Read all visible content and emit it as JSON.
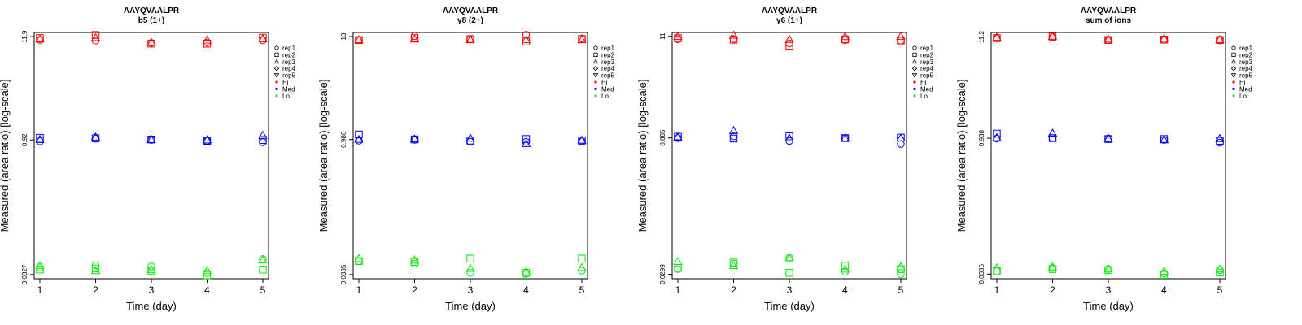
{
  "chart_data": [
    {
      "type": "scatter",
      "title": "AAYQVAALPR",
      "subtitle": "b5 (1+)",
      "xlabel": "Time (day)",
      "ylabel": "Measured (area ratio) [log-scale]",
      "x_ticks": [
        "1",
        "2",
        "3",
        "4",
        "5"
      ],
      "y_scale": "log",
      "y_ticks": [
        "0.0327",
        "0.92",
        "11.9"
      ],
      "ylim": [
        0.0295,
        13.2
      ],
      "legend_placement": "right",
      "legend": {
        "markers": [
          "rep1",
          "rep2",
          "rep3",
          "rep4",
          "rep5"
        ],
        "groups": [
          {
            "label": "Hi",
            "color": "#ff0000"
          },
          {
            "label": "Med",
            "color": "#0000ff"
          },
          {
            "label": "Lo",
            "color": "#00ee00"
          }
        ]
      },
      "series": [
        {
          "group": "Hi",
          "marker": "rep1",
          "values": [
            11.0,
            10.8,
            10.2,
            10.3,
            10.9
          ]
        },
        {
          "group": "Hi",
          "marker": "rep2",
          "values": [
            11.5,
            12.4,
            10.0,
            10.0,
            11.6
          ]
        },
        {
          "group": "Hi",
          "marker": "rep3",
          "values": [
            11.2,
            11.6,
            10.3,
            10.9,
            11.3
          ]
        },
        {
          "group": "Med",
          "marker": "rep1",
          "values": [
            0.89,
            0.95,
            0.92,
            0.9,
            0.87
          ]
        },
        {
          "group": "Med",
          "marker": "rep2",
          "values": [
            0.97,
            0.96,
            0.93,
            0.9,
            0.92
          ]
        },
        {
          "group": "Med",
          "marker": "rep3",
          "values": [
            0.93,
            0.99,
            0.93,
            0.92,
            1.03
          ]
        },
        {
          "group": "Lo",
          "marker": "rep1",
          "values": [
            0.039,
            0.041,
            0.04,
            0.034,
            0.048
          ]
        },
        {
          "group": "Lo",
          "marker": "rep2",
          "values": [
            0.037,
            0.038,
            0.036,
            0.032,
            0.037
          ]
        },
        {
          "group": "Lo",
          "marker": "rep3",
          "values": [
            0.041,
            0.036,
            0.037,
            0.036,
            0.047
          ]
        }
      ]
    },
    {
      "type": "scatter",
      "title": "AAYQVAALPR",
      "subtitle": "y8 (2+)",
      "xlabel": "Time (day)",
      "ylabel": "Measured (area ratio) [log-scale]",
      "x_ticks": [
        "1",
        "2",
        "3",
        "4",
        "5"
      ],
      "y_scale": "log",
      "y_ticks": [
        "0.0335",
        "0.986",
        "13"
      ],
      "ylim": [
        0.0302,
        14.4
      ],
      "legend_placement": "right",
      "legend": {
        "markers": [
          "rep1",
          "rep2",
          "rep3",
          "rep4",
          "rep5"
        ],
        "groups": [
          {
            "label": "Hi",
            "color": "#ff0000"
          },
          {
            "label": "Med",
            "color": "#0000ff"
          },
          {
            "label": "Lo",
            "color": "#00ee00"
          }
        ]
      },
      "series": [
        {
          "group": "Hi",
          "marker": "rep1",
          "values": [
            11.9,
            13.2,
            12.1,
            13.6,
            12.4
          ]
        },
        {
          "group": "Hi",
          "marker": "rep2",
          "values": [
            11.9,
            12.5,
            12.2,
            11.5,
            12.2
          ]
        },
        {
          "group": "Hi",
          "marker": "rep3",
          "values": [
            12.0,
            12.2,
            12.0,
            12.0,
            12.0
          ]
        },
        {
          "group": "Med",
          "marker": "rep1",
          "values": [
            0.96,
            0.98,
            0.93,
            0.93,
            0.94
          ]
        },
        {
          "group": "Med",
          "marker": "rep2",
          "values": [
            1.12,
            0.99,
            0.96,
            1.0,
            0.96
          ]
        },
        {
          "group": "Med",
          "marker": "rep3",
          "values": [
            0.99,
            1.0,
            1.02,
            0.89,
            0.97
          ]
        },
        {
          "group": "Lo",
          "marker": "rep1",
          "values": [
            0.047,
            0.044,
            0.035,
            0.034,
            0.037
          ]
        },
        {
          "group": "Lo",
          "marker": "rep2",
          "values": [
            0.047,
            0.046,
            0.05,
            0.035,
            0.05
          ]
        },
        {
          "group": "Lo",
          "marker": "rep3",
          "values": [
            0.05,
            0.048,
            0.039,
            0.036,
            0.04
          ]
        }
      ]
    },
    {
      "type": "scatter",
      "title": "AAYQVAALPR",
      "subtitle": "y6 (1+)",
      "xlabel": "Time (day)",
      "ylabel": "Measured (area ratio) [log-scale]",
      "x_ticks": [
        "1",
        "2",
        "3",
        "4",
        "5"
      ],
      "y_scale": "log",
      "y_ticks": [
        "0.0299",
        "0.885",
        "11"
      ],
      "ylim": [
        0.0268,
        12.1
      ],
      "legend_placement": "right",
      "legend": {
        "markers": [
          "rep1",
          "rep2",
          "rep3",
          "rep4",
          "rep5"
        ],
        "groups": [
          {
            "label": "Hi",
            "color": "#ff0000"
          },
          {
            "label": "Med",
            "color": "#0000ff"
          },
          {
            "label": "Lo",
            "color": "#00ee00"
          }
        ]
      },
      "series": [
        {
          "group": "Hi",
          "marker": "rep1",
          "values": [
            10.2,
            10.3,
            9.2,
            10.0,
            9.9
          ]
        },
        {
          "group": "Hi",
          "marker": "rep2",
          "values": [
            10.5,
            10.1,
            8.7,
            10.2,
            9.9
          ]
        },
        {
          "group": "Hi",
          "marker": "rep3",
          "values": [
            11.0,
            11.3,
            10.2,
            10.9,
            11.0
          ]
        },
        {
          "group": "Med",
          "marker": "rep1",
          "values": [
            0.88,
            0.92,
            0.82,
            0.88,
            0.76
          ]
        },
        {
          "group": "Med",
          "marker": "rep2",
          "values": [
            0.91,
            0.87,
            0.92,
            0.88,
            0.89
          ]
        },
        {
          "group": "Med",
          "marker": "rep3",
          "values": [
            0.91,
            1.06,
            0.88,
            0.88,
            0.88
          ]
        },
        {
          "group": "Lo",
          "marker": "rep1",
          "values": [
            0.034,
            0.039,
            0.045,
            0.032,
            0.03
          ]
        },
        {
          "group": "Lo",
          "marker": "rep2",
          "values": [
            0.035,
            0.04,
            0.031,
            0.037,
            0.034
          ]
        },
        {
          "group": "Lo",
          "marker": "rep3",
          "values": [
            0.041,
            0.037,
            0.045,
            0.034,
            0.036
          ]
        }
      ]
    },
    {
      "type": "scatter",
      "title": "AAYQVAALPR",
      "subtitle": "sum of ions",
      "xlabel": "Time (day)",
      "ylabel": "Measured (area ratio) [log-scale]",
      "x_ticks": [
        "1",
        "2",
        "3",
        "4",
        "5"
      ],
      "y_scale": "log",
      "y_ticks": [
        "0.0336",
        "0.938",
        "11.2"
      ],
      "ylim": [
        0.03,
        12.5
      ],
      "legend_placement": "right",
      "legend": {
        "markers": [
          "rep1",
          "rep2",
          "rep3",
          "rep4",
          "rep5"
        ],
        "groups": [
          {
            "label": "Hi",
            "color": "#ff0000"
          },
          {
            "label": "Med",
            "color": "#0000ff"
          },
          {
            "label": "Lo",
            "color": "#00ee00"
          }
        ]
      },
      "series": [
        {
          "group": "Hi",
          "marker": "rep1",
          "values": [
            10.8,
            11.1,
            10.3,
            10.4,
            10.3
          ]
        },
        {
          "group": "Hi",
          "marker": "rep2",
          "values": [
            10.9,
            11.3,
            10.4,
            10.5,
            10.4
          ]
        },
        {
          "group": "Hi",
          "marker": "rep3",
          "values": [
            11.1,
            11.4,
            10.6,
            10.8,
            10.5
          ]
        },
        {
          "group": "Med",
          "marker": "rep1",
          "values": [
            0.93,
            0.94,
            0.93,
            0.9,
            0.84
          ]
        },
        {
          "group": "Med",
          "marker": "rep2",
          "values": [
            1.05,
            0.94,
            0.92,
            0.92,
            0.88
          ]
        },
        {
          "group": "Med",
          "marker": "rep3",
          "values": [
            0.95,
            1.06,
            0.93,
            0.9,
            0.93
          ]
        },
        {
          "group": "Lo",
          "marker": "rep1",
          "values": [
            0.036,
            0.039,
            0.038,
            0.034,
            0.037
          ]
        },
        {
          "group": "Lo",
          "marker": "rep2",
          "values": [
            0.036,
            0.038,
            0.037,
            0.033,
            0.035
          ]
        },
        {
          "group": "Lo",
          "marker": "rep3",
          "values": [
            0.039,
            0.04,
            0.038,
            0.036,
            0.038
          ]
        }
      ]
    }
  ]
}
